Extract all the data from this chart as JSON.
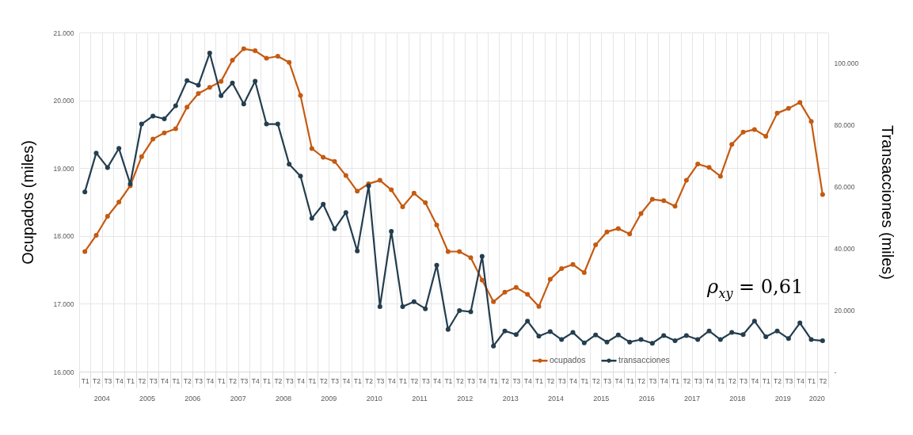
{
  "chart_data": {
    "type": "line",
    "categories": [
      "T1",
      "T2",
      "T3",
      "T4",
      "T1",
      "T2",
      "T3",
      "T4",
      "T1",
      "T2",
      "T3",
      "T4",
      "T1",
      "T2",
      "T3",
      "T4",
      "T1",
      "T2",
      "T3",
      "T4",
      "T1",
      "T2",
      "T3",
      "T4",
      "T1",
      "T2",
      "T3",
      "T4",
      "T1",
      "T2",
      "T3",
      "T4",
      "T1",
      "T2",
      "T3",
      "T4",
      "T1",
      "T2",
      "T3",
      "T4",
      "T1",
      "T2",
      "T3",
      "T4",
      "T1",
      "T2",
      "T3",
      "T4",
      "T1",
      "T2",
      "T3",
      "T4",
      "T1",
      "T2",
      "T3",
      "T4",
      "T1",
      "T2",
      "T3",
      "T4",
      "T1",
      "T2",
      "T3",
      "T4",
      "T1",
      "T2"
    ],
    "series": [
      {
        "name": "ocupados",
        "color": "#c55a11",
        "values": [
          17770,
          18010,
          18290,
          18500,
          18740,
          19170,
          19430,
          19520,
          19580,
          19900,
          20100,
          20190,
          20280,
          20590,
          20760,
          20730,
          20620,
          20650,
          20560,
          20070,
          19290,
          19160,
          19100,
          18890,
          18660,
          18770,
          18820,
          18680,
          18430,
          18630,
          18490,
          18160,
          17770,
          17770,
          17680,
          17350,
          17030,
          17170,
          17240,
          17140,
          16960,
          17360,
          17520,
          17580,
          17460,
          17870,
          18060,
          18110,
          18030,
          18330,
          18540,
          18520,
          18440,
          18820,
          19060,
          19010,
          18880,
          19350,
          19530,
          19570,
          19470,
          19810,
          19880,
          19970,
          19690,
          18610
        ]
      },
      {
        "name": "transacciones",
        "color": "#243e4f",
        "axis": "y2",
        "values": [
          58300,
          70900,
          66200,
          72400,
          60900,
          80300,
          82900,
          82000,
          86200,
          94400,
          92900,
          103300,
          89500,
          93600,
          86800,
          94200,
          80300,
          80300,
          67300,
          63400,
          49700,
          54300,
          46300,
          51600,
          39100,
          60300,
          21100,
          45500,
          21100,
          22700,
          20400,
          34500,
          13700,
          19800,
          19400,
          37400,
          8300,
          13200,
          12000,
          16400,
          11500,
          13000,
          10400,
          12700,
          9300,
          11900,
          9600,
          11900,
          9600,
          10400,
          9200,
          11700,
          10000,
          11700,
          10400,
          13200,
          10400,
          12700,
          12000,
          16400,
          11300,
          13200,
          10700,
          15800,
          10400,
          10000
        ]
      }
    ],
    "ylabel": "Ocupados (miles)",
    "y2label": "Transacciones (miles)",
    "ylim": [
      16000,
      21000
    ],
    "yticks": [
      {
        "value": 16000,
        "label": "16.000"
      },
      {
        "value": 17000,
        "label": "17.000"
      },
      {
        "value": 18000,
        "label": "18.000"
      },
      {
        "value": 19000,
        "label": "19.000"
      },
      {
        "value": 20000,
        "label": "20.000"
      },
      {
        "value": 21000,
        "label": "21.000"
      }
    ],
    "y2lim": [
      0,
      110000
    ],
    "y2ticks": [
      {
        "value": 0,
        "label": "-"
      },
      {
        "value": 20000,
        "label": "20.000"
      },
      {
        "value": 40000,
        "label": "40.000"
      },
      {
        "value": 60000,
        "label": "60.000"
      },
      {
        "value": 80000,
        "label": "80.000"
      },
      {
        "value": 100000,
        "label": "100.000"
      }
    ],
    "annotations": [
      "ρ$_{xy}$ = 0,61",
      "2004",
      "2005",
      "2006",
      "2007",
      "2008",
      "2009",
      "2010",
      "2011",
      "2012",
      "2013",
      "2014",
      "2015",
      "2016",
      "2017",
      "2018",
      "2019",
      "2020"
    ],
    "grid": true,
    "legend": "bottom right",
    "marker": "circle"
  }
}
